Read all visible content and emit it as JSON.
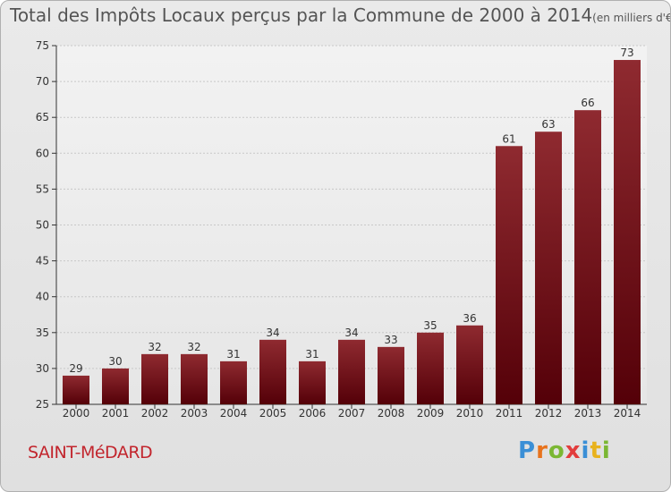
{
  "header": {
    "title": "Total des Impôts Locaux perçus par la Commune de 2000 à 2014",
    "unit": "(en milliers d'€)"
  },
  "footer": {
    "commune": "SAINT-MéDARD",
    "logo_letters": [
      "P",
      "r",
      "o",
      "x",
      "i",
      "t",
      "i"
    ],
    "logo_colors": [
      "#3a8fd6",
      "#e8731d",
      "#7bb733",
      "#e23d3d",
      "#3a8fd6",
      "#e8b21d",
      "#7bb733"
    ]
  },
  "chart_data": {
    "type": "bar",
    "title": "Total des Impôts Locaux perçus par la Commune de 2000 à 2014",
    "xlabel": "",
    "ylabel": "",
    "categories": [
      "2000",
      "2001",
      "2002",
      "2003",
      "2004",
      "2005",
      "2006",
      "2007",
      "2008",
      "2009",
      "2010",
      "2011",
      "2012",
      "2013",
      "2014"
    ],
    "values": [
      29,
      30,
      32,
      32,
      31,
      34,
      31,
      34,
      33,
      35,
      36,
      61,
      63,
      66,
      73
    ],
    "ylim": [
      25,
      75
    ],
    "yticks": [
      25,
      30,
      35,
      40,
      45,
      50,
      55,
      60,
      65,
      70,
      75
    ],
    "grid": true,
    "bar_color": "#7a1a1e"
  }
}
